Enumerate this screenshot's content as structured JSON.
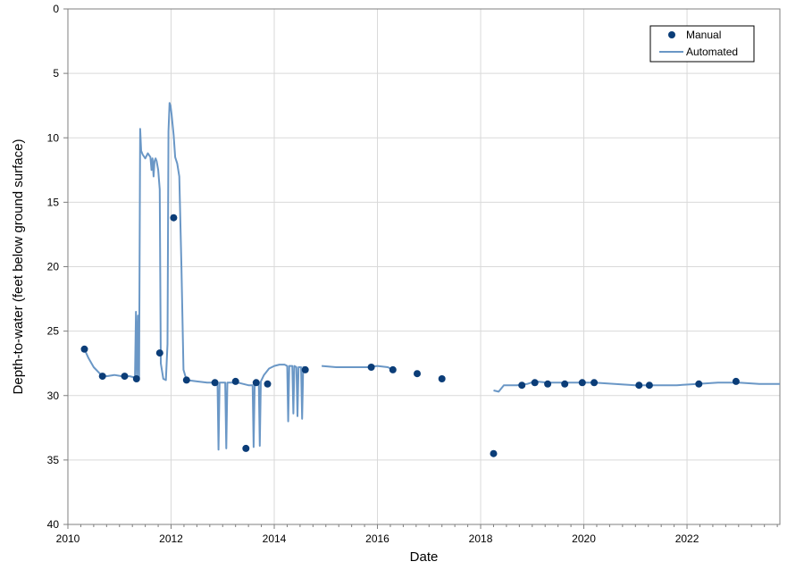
{
  "chart_data": {
    "type": "line",
    "title": "",
    "xlabel": "Date",
    "ylabel": "Depth-to-water (feet below ground surface)",
    "xlim": [
      2010,
      2023.8
    ],
    "ylim": [
      0,
      40
    ],
    "y_inverted": true,
    "x_ticks": [
      2010,
      2012,
      2014,
      2016,
      2018,
      2020,
      2022
    ],
    "x_tick_labels": [
      "2010",
      "2012",
      "2014",
      "2016",
      "2018",
      "2020",
      "2022"
    ],
    "y_ticks": [
      0,
      5,
      10,
      15,
      20,
      25,
      30,
      35,
      40
    ],
    "y_tick_labels": [
      "0",
      "5",
      "10",
      "15",
      "20",
      "25",
      "30",
      "35",
      "40"
    ],
    "grid": true,
    "legend_position": "top-right",
    "colors": {
      "manual": "#0b3d78",
      "automated": "#6a97c6"
    },
    "series": [
      {
        "name": "Manual",
        "kind": "scatter",
        "points": [
          [
            2010.32,
            26.4
          ],
          [
            2010.67,
            28.5
          ],
          [
            2011.1,
            28.5
          ],
          [
            2011.33,
            28.7
          ],
          [
            2011.78,
            26.7
          ],
          [
            2012.05,
            16.2
          ],
          [
            2012.3,
            28.8
          ],
          [
            2012.85,
            29.0
          ],
          [
            2013.25,
            28.9
          ],
          [
            2013.45,
            34.1
          ],
          [
            2013.65,
            29.0
          ],
          [
            2013.87,
            29.1
          ],
          [
            2014.6,
            28.0
          ],
          [
            2015.88,
            27.8
          ],
          [
            2016.3,
            28.0
          ],
          [
            2016.77,
            28.3
          ],
          [
            2017.25,
            28.7
          ],
          [
            2018.25,
            34.5
          ],
          [
            2018.8,
            29.2
          ],
          [
            2019.05,
            29.0
          ],
          [
            2019.3,
            29.1
          ],
          [
            2019.63,
            29.1
          ],
          [
            2019.97,
            29.0
          ],
          [
            2020.2,
            29.0
          ],
          [
            2021.07,
            29.2
          ],
          [
            2021.27,
            29.2
          ],
          [
            2022.23,
            29.1
          ],
          [
            2022.95,
            28.9
          ]
        ]
      },
      {
        "name": "Automated",
        "kind": "line",
        "segments": [
          [
            [
              2010.32,
              26.4
            ],
            [
              2010.4,
              27.1
            ],
            [
              2010.5,
              27.8
            ],
            [
              2010.62,
              28.3
            ],
            [
              2010.75,
              28.5
            ],
            [
              2010.9,
              28.4
            ],
            [
              2011.05,
              28.5
            ],
            [
              2011.2,
              28.5
            ],
            [
              2011.3,
              28.6
            ],
            [
              2011.32,
              23.5
            ],
            [
              2011.34,
              28.6
            ],
            [
              2011.36,
              23.8
            ],
            [
              2011.38,
              28.6
            ],
            [
              2011.4,
              9.3
            ],
            [
              2011.42,
              11.0
            ],
            [
              2011.45,
              11.3
            ],
            [
              2011.5,
              11.6
            ],
            [
              2011.55,
              11.2
            ],
            [
              2011.6,
              11.5
            ],
            [
              2011.62,
              12.5
            ],
            [
              2011.64,
              11.6
            ],
            [
              2011.66,
              13.0
            ],
            [
              2011.68,
              11.8
            ],
            [
              2011.7,
              11.6
            ],
            [
              2011.72,
              11.8
            ],
            [
              2011.75,
              12.5
            ],
            [
              2011.78,
              14.0
            ],
            [
              2011.8,
              27.5
            ],
            [
              2011.85,
              28.7
            ],
            [
              2011.9,
              28.8
            ],
            [
              2011.93,
              26.0
            ],
            [
              2011.95,
              9.5
            ],
            [
              2011.97,
              7.3
            ],
            [
              2011.99,
              7.5
            ],
            [
              2012.01,
              8.2
            ],
            [
              2012.05,
              9.8
            ],
            [
              2012.08,
              11.5
            ],
            [
              2012.12,
              12.0
            ],
            [
              2012.16,
              13.0
            ],
            [
              2012.2,
              20.0
            ],
            [
              2012.24,
              28.0
            ],
            [
              2012.3,
              28.8
            ],
            [
              2012.5,
              28.9
            ],
            [
              2012.7,
              29.0
            ],
            [
              2012.9,
              29.0
            ],
            [
              2012.92,
              34.2
            ],
            [
              2012.94,
              29.0
            ],
            [
              2013.05,
              29.0
            ],
            [
              2013.07,
              34.1
            ],
            [
              2013.09,
              29.0
            ],
            [
              2013.3,
              29.0
            ],
            [
              2013.5,
              29.2
            ],
            [
              2013.58,
              29.2
            ],
            [
              2013.6,
              34.0
            ],
            [
              2013.62,
              29.1
            ],
            [
              2013.7,
              29.0
            ],
            [
              2013.72,
              33.9
            ],
            [
              2013.74,
              28.9
            ],
            [
              2013.8,
              28.4
            ],
            [
              2013.9,
              27.9
            ],
            [
              2014.0,
              27.7
            ],
            [
              2014.1,
              27.6
            ],
            [
              2014.2,
              27.6
            ],
            [
              2014.25,
              27.7
            ],
            [
              2014.27,
              32.0
            ],
            [
              2014.29,
              27.7
            ],
            [
              2014.35,
              27.7
            ],
            [
              2014.37,
              31.4
            ],
            [
              2014.39,
              27.7
            ],
            [
              2014.43,
              27.8
            ],
            [
              2014.45,
              31.6
            ],
            [
              2014.47,
              27.8
            ],
            [
              2014.52,
              27.8
            ],
            [
              2014.54,
              31.8
            ],
            [
              2014.56,
              27.8
            ],
            [
              2014.6,
              28.0
            ]
          ],
          [
            [
              2014.92,
              27.7
            ],
            [
              2015.2,
              27.8
            ],
            [
              2015.5,
              27.8
            ],
            [
              2015.8,
              27.8
            ],
            [
              2016.0,
              27.7
            ],
            [
              2016.2,
              27.8
            ],
            [
              2016.3,
              28.0
            ]
          ],
          [
            [
              2018.25,
              29.6
            ],
            [
              2018.35,
              29.7
            ],
            [
              2018.45,
              29.2
            ],
            [
              2018.7,
              29.2
            ],
            [
              2018.9,
              29.1
            ],
            [
              2019.05,
              28.9
            ],
            [
              2019.3,
              29.0
            ],
            [
              2019.6,
              29.0
            ],
            [
              2019.9,
              29.0
            ],
            [
              2020.2,
              29.0
            ],
            [
              2020.6,
              29.1
            ],
            [
              2021.0,
              29.2
            ],
            [
              2021.4,
              29.2
            ],
            [
              2021.8,
              29.2
            ],
            [
              2022.2,
              29.1
            ],
            [
              2022.6,
              29.0
            ],
            [
              2023.0,
              29.0
            ],
            [
              2023.4,
              29.1
            ],
            [
              2023.8,
              29.1
            ]
          ]
        ]
      }
    ]
  }
}
